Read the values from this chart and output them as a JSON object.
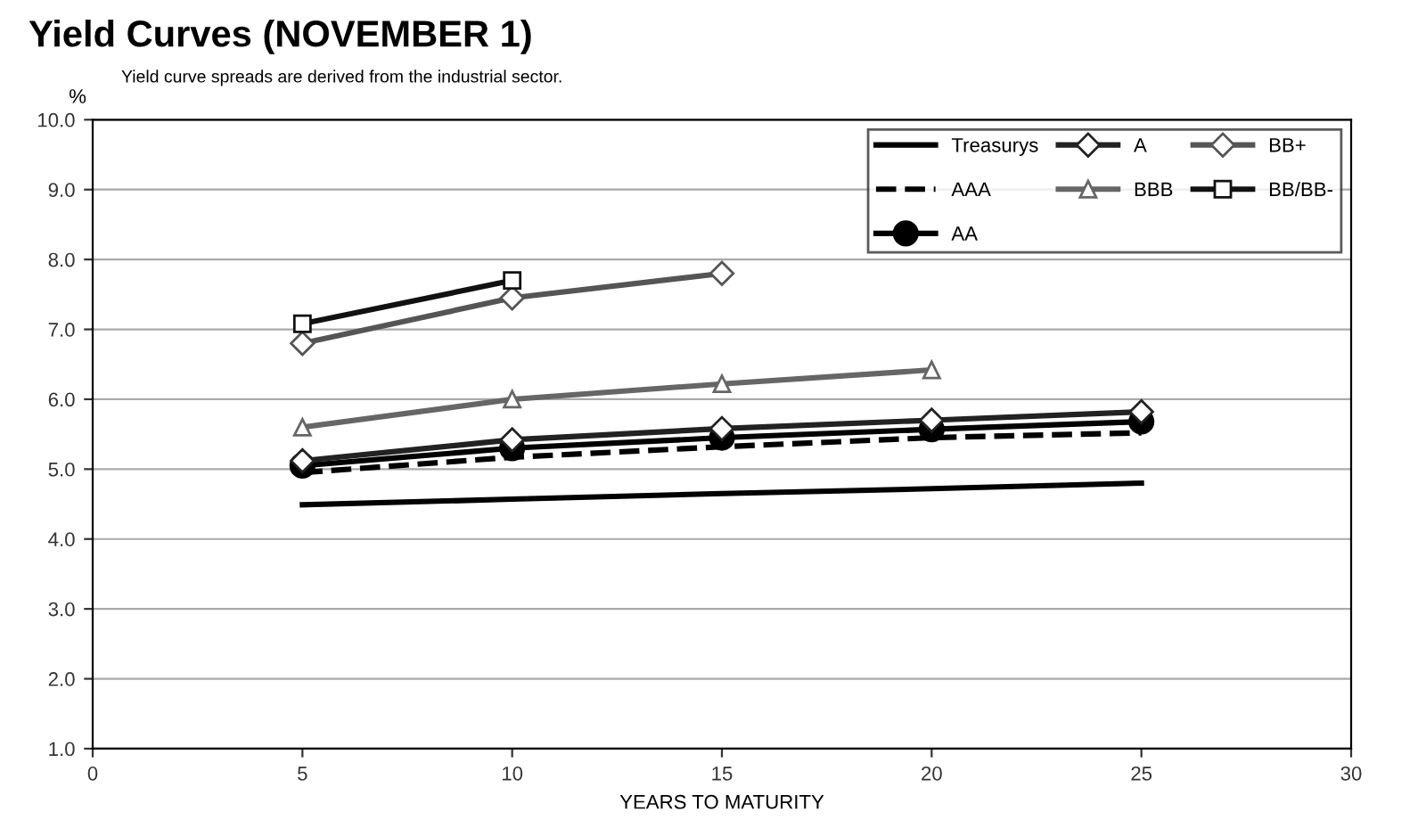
{
  "chart_data": {
    "type": "line",
    "title": "Yield Curves (NOVEMBER 1)",
    "subtitle": "Yield curve spreads are derived from the industrial sector.",
    "xlabel": "YEARS TO MATURITY",
    "ylabel": "%",
    "x": [
      5,
      10,
      15,
      20,
      25
    ],
    "series": [
      {
        "name": "Treasurys",
        "color": "#000000",
        "marker": "none",
        "line_style": "solid",
        "values": [
          4.49,
          4.57,
          4.65,
          4.72,
          4.8
        ]
      },
      {
        "name": "AAA",
        "color": "#000000",
        "marker": "none",
        "line_style": "dashed",
        "values": [
          4.95,
          5.17,
          5.32,
          5.45,
          5.52
        ]
      },
      {
        "name": "AA",
        "color": "#000000",
        "marker": "circle",
        "line_style": "solid",
        "values": [
          5.05,
          5.3,
          5.45,
          5.57,
          5.68
        ]
      },
      {
        "name": "A",
        "color": "#222222",
        "marker": "diamond",
        "line_style": "solid",
        "values": [
          5.12,
          5.42,
          5.58,
          5.7,
          5.82
        ]
      },
      {
        "name": "BBB",
        "color": "#666666",
        "marker": "triangle",
        "line_style": "solid",
        "values": [
          5.6,
          6.0,
          6.22,
          6.42,
          null
        ]
      },
      {
        "name": "BB+",
        "color": "#555555",
        "marker": "diamond",
        "line_style": "solid",
        "values": [
          6.8,
          7.45,
          7.8,
          null,
          null
        ]
      },
      {
        "name": "BB/BB-",
        "color": "#111111",
        "marker": "square",
        "line_style": "solid",
        "values": [
          7.08,
          7.7,
          null,
          null,
          null
        ]
      }
    ],
    "xlim": [
      0,
      30
    ],
    "xticks": [
      0,
      5,
      10,
      15,
      20,
      25,
      30
    ],
    "ylim": [
      1,
      10
    ],
    "yticks": [
      {
        "value": 1,
        "label": "1.0"
      },
      {
        "value": 2,
        "label": "2.0"
      },
      {
        "value": 3,
        "label": "3.0"
      },
      {
        "value": 4,
        "label": "4.0"
      },
      {
        "value": 5,
        "label": "5.0"
      },
      {
        "value": 6,
        "label": "6.0"
      },
      {
        "value": 7,
        "label": "7.0"
      },
      {
        "value": 8,
        "label": "8.0"
      },
      {
        "value": 9,
        "label": "9.0"
      },
      {
        "value": 10,
        "label": "10.0"
      }
    ],
    "grid": "y",
    "legend": "top right"
  }
}
